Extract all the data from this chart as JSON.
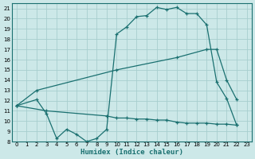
{
  "xlabel": "Humidex (Indice chaleur)",
  "background_color": "#cce8e8",
  "grid_color": "#a8cece",
  "line_color": "#1a7070",
  "xlim": [
    -0.5,
    23.5
  ],
  "ylim": [
    8,
    21.5
  ],
  "xticks": [
    0,
    1,
    2,
    3,
    4,
    5,
    6,
    7,
    8,
    9,
    10,
    11,
    12,
    13,
    14,
    15,
    16,
    17,
    18,
    19,
    20,
    21,
    22,
    23
  ],
  "yticks": [
    8,
    9,
    10,
    11,
    12,
    13,
    14,
    15,
    16,
    17,
    18,
    19,
    20,
    21
  ],
  "line1_x": [
    0,
    2,
    3,
    4,
    5,
    6,
    7,
    8,
    9,
    10,
    11,
    12,
    13,
    14,
    15,
    16,
    17,
    18,
    19,
    20,
    21,
    22
  ],
  "line1_y": [
    11.5,
    12.1,
    10.7,
    8.3,
    9.2,
    8.7,
    8.0,
    8.3,
    9.2,
    18.5,
    19.2,
    20.2,
    20.3,
    21.1,
    20.9,
    21.1,
    20.5,
    20.5,
    19.4,
    13.8,
    12.2,
    9.6
  ],
  "line2_x": [
    0,
    2,
    10,
    16,
    19,
    20,
    21,
    22
  ],
  "line2_y": [
    11.5,
    13.0,
    15.0,
    16.2,
    17.0,
    17.0,
    14.0,
    12.1
  ],
  "line3_x": [
    0,
    3,
    9,
    10,
    11,
    12,
    13,
    14,
    15,
    16,
    17,
    18,
    19,
    20,
    21,
    22
  ],
  "line3_y": [
    11.5,
    11.0,
    10.5,
    10.3,
    10.3,
    10.2,
    10.2,
    10.1,
    10.1,
    9.9,
    9.8,
    9.8,
    9.8,
    9.7,
    9.7,
    9.6
  ]
}
